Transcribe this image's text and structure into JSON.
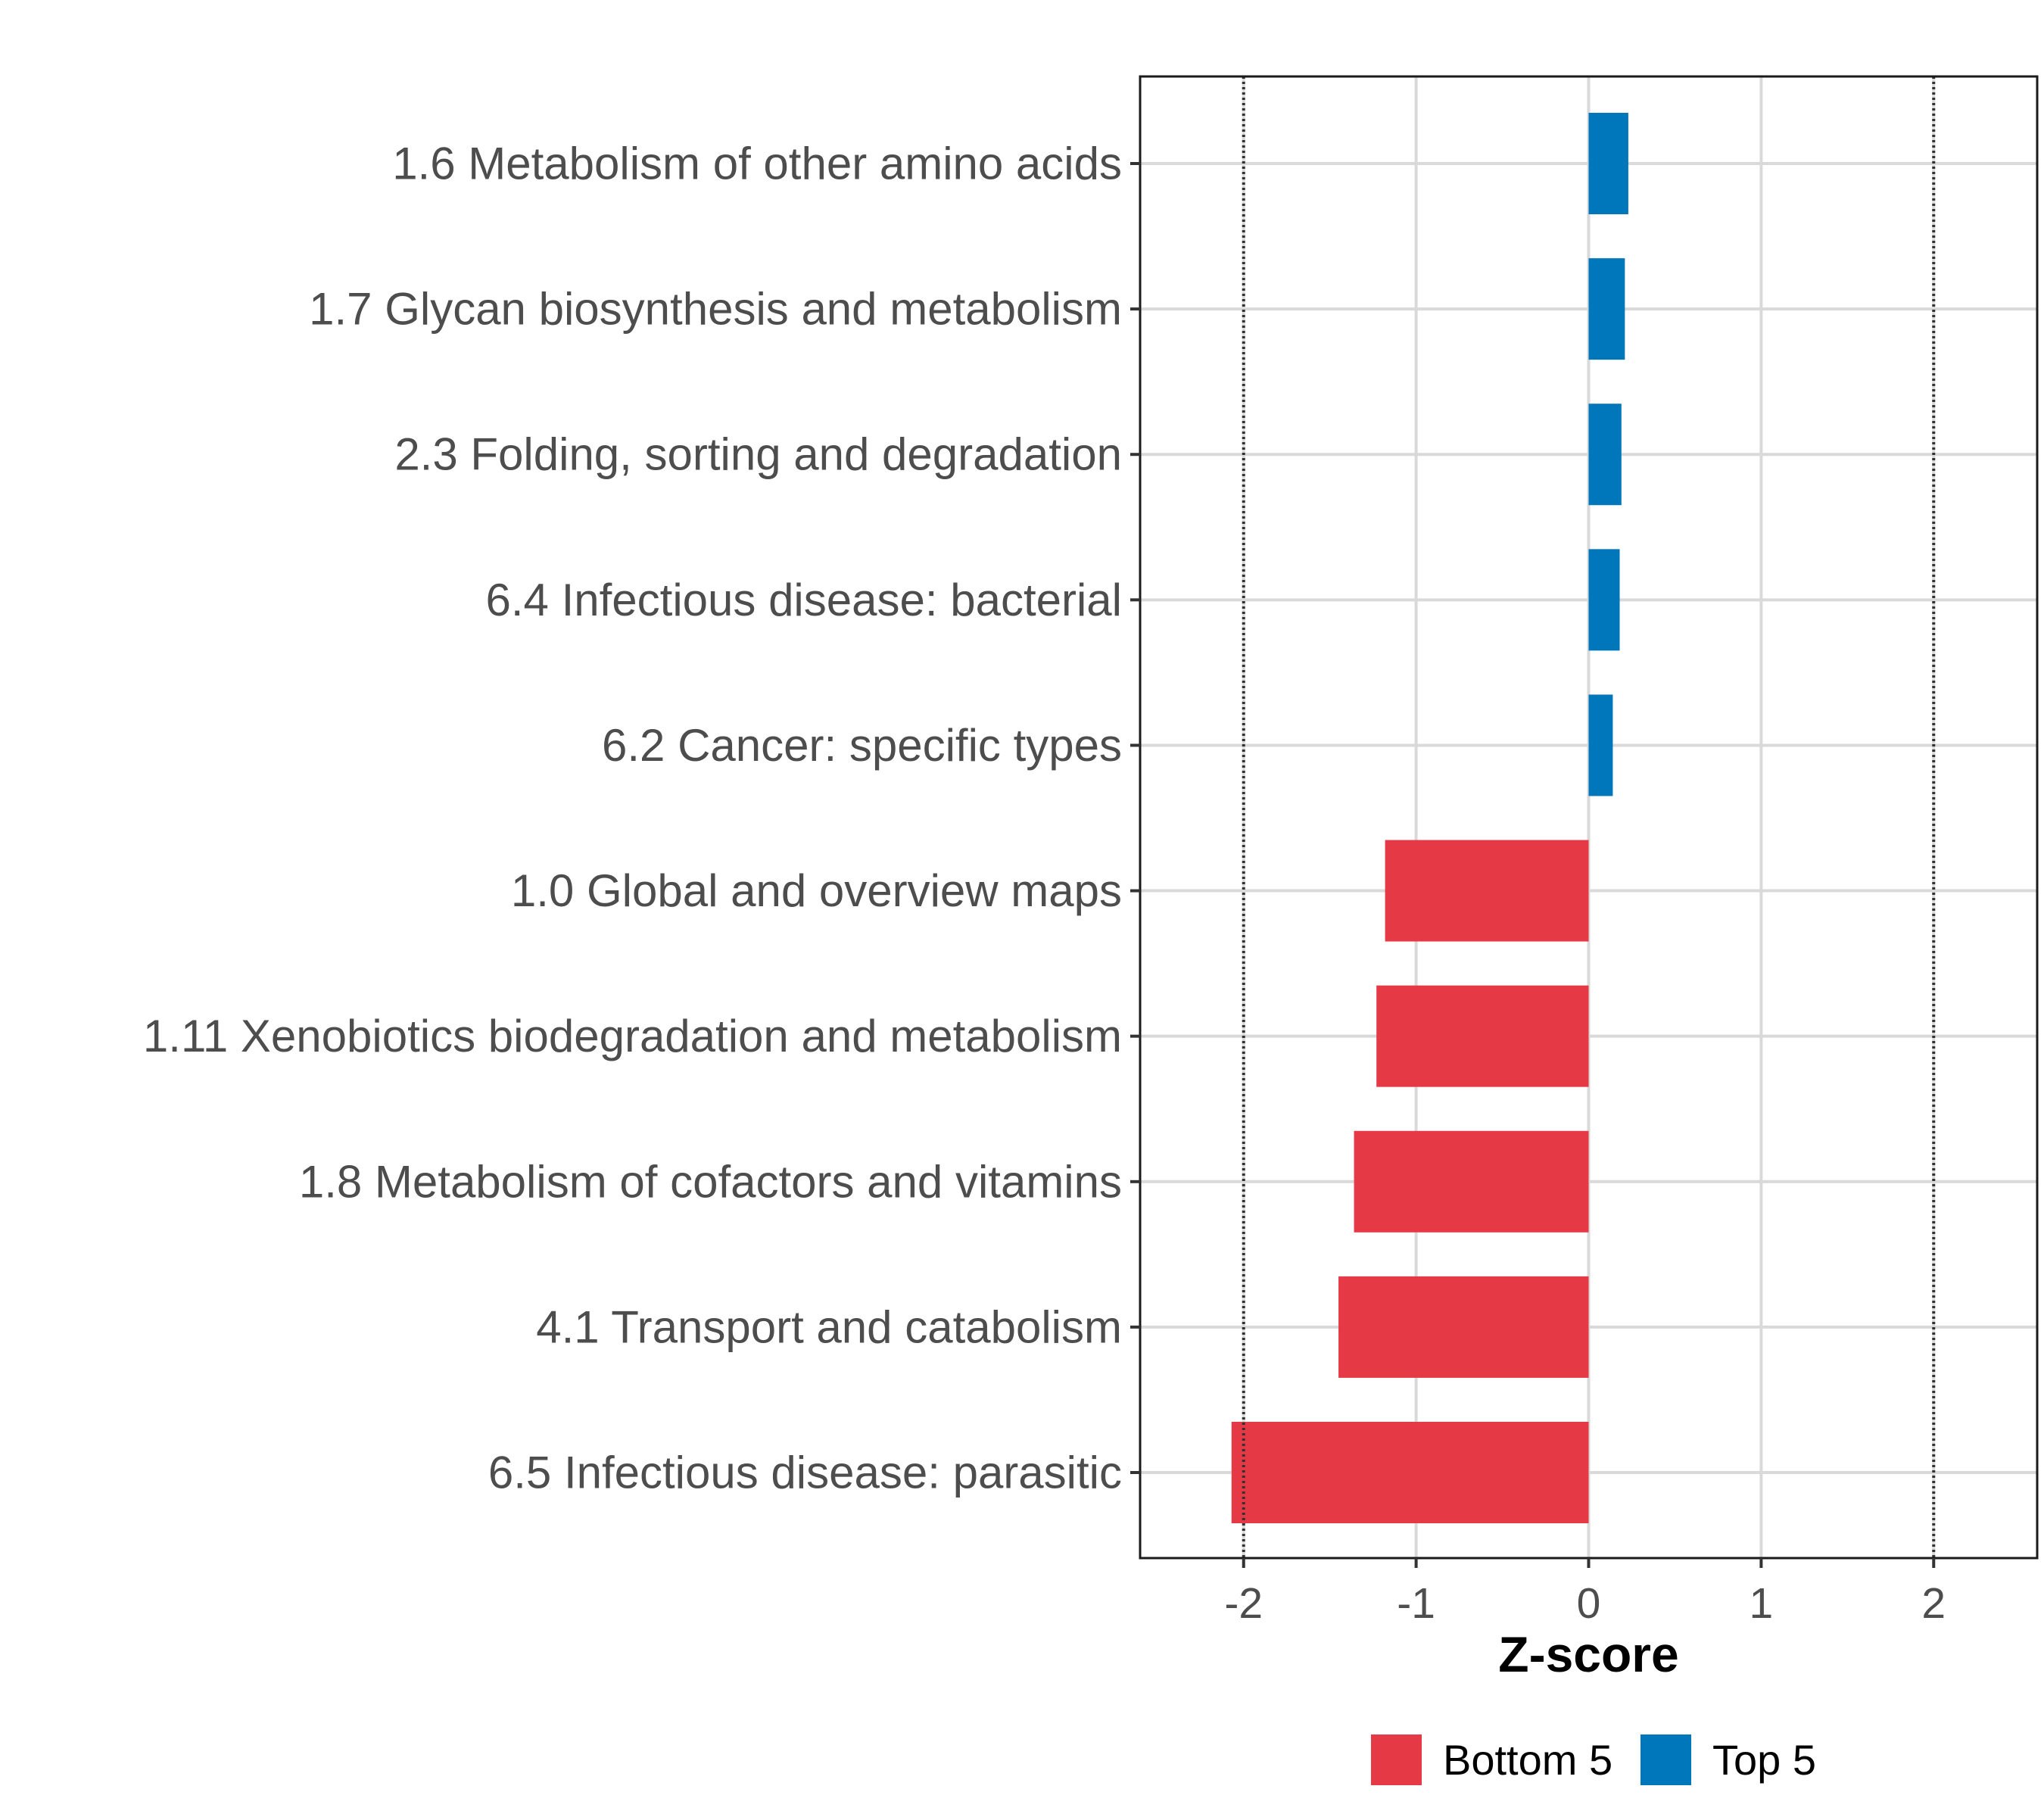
{
  "chart_data": {
    "type": "bar",
    "orientation": "horizontal",
    "title": "",
    "xlabel": "Z-score",
    "ylabel": "",
    "xlim": [
      -2.6,
      2.6
    ],
    "xticks": [
      -2,
      -1,
      0,
      1,
      2
    ],
    "xtick_labels": [
      "-2",
      "-1",
      "0",
      "1",
      "2"
    ],
    "reference_lines": [
      -2,
      2
    ],
    "grid": true,
    "categories": [
      "1.6 Metabolism of other amino acids",
      "1.7 Glycan biosynthesis and metabolism",
      "2.3 Folding, sorting and degradation",
      "6.4 Infectious disease: bacterial",
      "6.2 Cancer: specific types",
      "1.0 Global and overview maps",
      "1.11 Xenobiotics biodegradation and metabolism",
      "1.8 Metabolism of cofactors and vitamins",
      "4.1 Transport and catabolism",
      "6.5 Infectious disease: parasitic"
    ],
    "values": [
      0.23,
      0.21,
      0.19,
      0.18,
      0.14,
      -1.18,
      -1.23,
      -1.36,
      -1.45,
      -2.07
    ],
    "groups": [
      "Top 5",
      "Top 5",
      "Top 5",
      "Top 5",
      "Top 5",
      "Bottom 5",
      "Bottom 5",
      "Bottom 5",
      "Bottom 5",
      "Bottom 5"
    ],
    "legend": {
      "position": "bottom",
      "entries": [
        {
          "label": "Bottom 5",
          "color": "#e63946"
        },
        {
          "label": "Top 5",
          "color": "#0077bb"
        }
      ]
    },
    "colors": {
      "Bottom 5": "#e63946",
      "Top 5": "#0077bb"
    }
  }
}
